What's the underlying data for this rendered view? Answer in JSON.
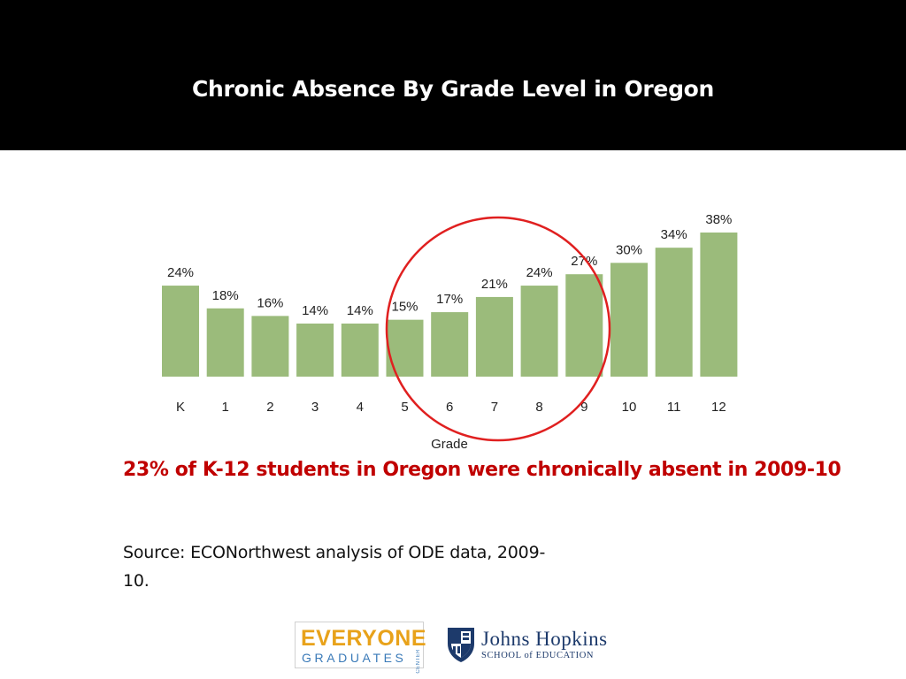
{
  "slide": {
    "title": "Chronic Absence By Grade Level in Oregon",
    "headline": "23% of K-12 students in Oregon were chronically absent in 2009-10",
    "source": "Source: ECONorthwest analysis of ODE data, 2009-10."
  },
  "logos": {
    "everyone_graduates": {
      "line1": "EVERYONE",
      "line2": "GRADUATES",
      "line3": "CENTER"
    },
    "johns_hopkins": {
      "name": "Johns Hopkins",
      "school": "SCHOOL of EDUCATION"
    }
  },
  "chart_data": {
    "type": "bar",
    "categories": [
      "K",
      "1",
      "2",
      "3",
      "4",
      "5",
      "6",
      "7",
      "8",
      "9",
      "10",
      "11",
      "12"
    ],
    "values": [
      24,
      18,
      16,
      14,
      14,
      15,
      17,
      21,
      24,
      27,
      30,
      34,
      38
    ],
    "data_labels": [
      "24%",
      "18%",
      "16%",
      "14%",
      "14%",
      "15%",
      "17%",
      "21%",
      "24%",
      "27%",
      "30%",
      "34%",
      "38%"
    ],
    "xlabel": "Grade",
    "ylabel": "",
    "ylim": [
      0,
      38
    ],
    "grid": false,
    "bar_color": "#9bbb7b",
    "highlight": {
      "shape": "circle",
      "color": "#e02020",
      "covers_categories": [
        "5",
        "6",
        "7",
        "8",
        "9"
      ]
    }
  },
  "colors": {
    "header_bg": "#000000",
    "title_text": "#ffffff",
    "headline_text": "#c00000"
  }
}
